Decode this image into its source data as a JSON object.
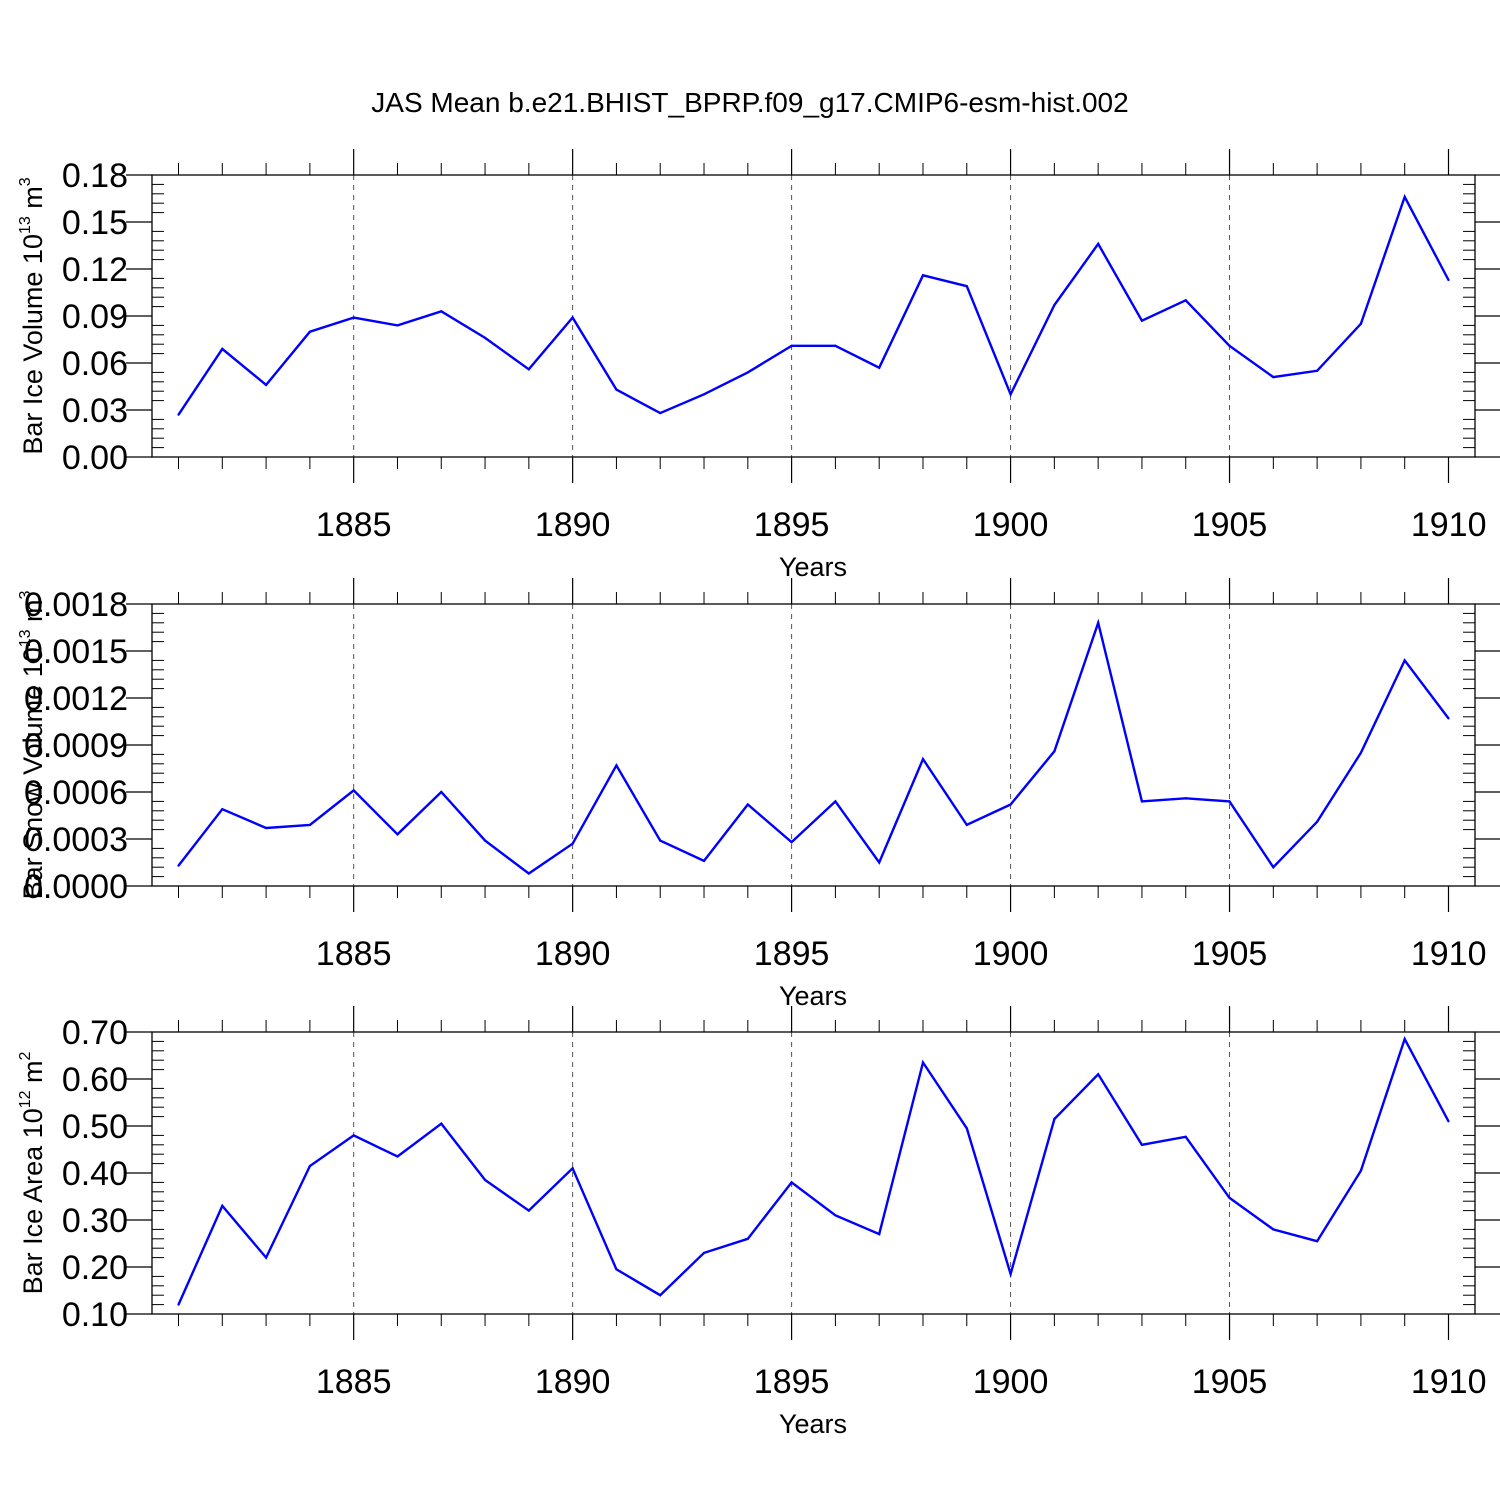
{
  "title": "JAS Mean b.e21.BHIST_BPRP.f09_g17.CMIP6-esm-hist.002",
  "colors": {
    "series": "#0000ff",
    "axes": "#000000",
    "grid": "#555555"
  },
  "chart_data": [
    {
      "type": "line",
      "ylabel": "Bar Ice Volume 10",
      "ylabel_exp": "13",
      "ylabel_unit": " m",
      "ylabel_unit_exp": "3",
      "xlabel": "Years",
      "xlim": [
        1881,
        1910
      ],
      "ylim": [
        0.0,
        0.18
      ],
      "yticks": [
        0.0,
        0.03,
        0.06,
        0.09,
        0.12,
        0.15,
        0.18
      ],
      "ytick_labels": [
        "0.00",
        "0.03",
        "0.06",
        "0.09",
        "0.12",
        "0.15",
        "0.18"
      ],
      "ytick_minor_step": 0.006,
      "xticks": [
        1885,
        1890,
        1895,
        1900,
        1905,
        1910
      ],
      "xtick_labels": [
        "1885",
        "1890",
        "1895",
        "1900",
        "1905",
        "1910"
      ],
      "x": [
        1881,
        1882,
        1883,
        1884,
        1885,
        1886,
        1887,
        1888,
        1889,
        1890,
        1891,
        1892,
        1893,
        1894,
        1895,
        1896,
        1897,
        1898,
        1899,
        1900,
        1901,
        1902,
        1903,
        1904,
        1905,
        1906,
        1907,
        1908,
        1909,
        1910
      ],
      "series": [
        {
          "name": "Bar Ice Volume",
          "values": [
            0.027,
            0.069,
            0.046,
            0.08,
            0.089,
            0.084,
            0.093,
            0.076,
            0.056,
            0.089,
            0.043,
            0.028,
            0.04,
            0.054,
            0.071,
            0.071,
            0.057,
            0.116,
            0.109,
            0.04,
            0.097,
            0.136,
            0.087,
            0.1,
            0.071,
            0.051,
            0.055,
            0.085,
            0.166,
            0.113
          ]
        }
      ]
    },
    {
      "type": "line",
      "ylabel": "Bar Snow Volume 10",
      "ylabel_exp": "13",
      "ylabel_unit": " m",
      "ylabel_unit_exp": "3",
      "xlabel": "Years",
      "xlim": [
        1881,
        1910
      ],
      "ylim": [
        0.0,
        0.0018
      ],
      "yticks": [
        0.0,
        0.0003,
        0.0006,
        0.0009,
        0.0012,
        0.0015,
        0.0018
      ],
      "ytick_labels": [
        "0.0000",
        "0.0003",
        "0.0006",
        "0.0009",
        "0.0012",
        "0.0015",
        "0.0018"
      ],
      "ytick_minor_step": 6e-05,
      "xticks": [
        1885,
        1890,
        1895,
        1900,
        1905,
        1910
      ],
      "xtick_labels": [
        "1885",
        "1890",
        "1895",
        "1900",
        "1905",
        "1910"
      ],
      "x": [
        1881,
        1882,
        1883,
        1884,
        1885,
        1886,
        1887,
        1888,
        1889,
        1890,
        1891,
        1892,
        1893,
        1894,
        1895,
        1896,
        1897,
        1898,
        1899,
        1900,
        1901,
        1902,
        1903,
        1904,
        1905,
        1906,
        1907,
        1908,
        1909,
        1910
      ],
      "series": [
        {
          "name": "Bar Snow Volume",
          "values": [
            0.00013,
            0.00049,
            0.00037,
            0.00039,
            0.00061,
            0.00033,
            0.0006,
            0.00029,
            8e-05,
            0.00027,
            0.00077,
            0.00029,
            0.00016,
            0.00052,
            0.00028,
            0.00054,
            0.00015,
            0.00081,
            0.00039,
            0.00052,
            0.00086,
            0.00168,
            0.00054,
            0.00056,
            0.00054,
            0.00012,
            0.00041,
            0.00085,
            0.00144,
            0.00107
          ]
        }
      ]
    },
    {
      "type": "line",
      "ylabel": "Bar Ice Area 10",
      "ylabel_exp": "12",
      "ylabel_unit": " m",
      "ylabel_unit_exp": "2",
      "xlabel": "Years",
      "xlim": [
        1881,
        1910
      ],
      "ylim": [
        0.1,
        0.7
      ],
      "yticks": [
        0.1,
        0.2,
        0.3,
        0.4,
        0.5,
        0.6,
        0.7
      ],
      "ytick_labels": [
        "0.10",
        "0.20",
        "0.30",
        "0.40",
        "0.50",
        "0.60",
        "0.70"
      ],
      "ytick_minor_step": 0.02,
      "xticks": [
        1885,
        1890,
        1895,
        1900,
        1905,
        1910
      ],
      "xtick_labels": [
        "1885",
        "1890",
        "1895",
        "1900",
        "1905",
        "1910"
      ],
      "x": [
        1881,
        1882,
        1883,
        1884,
        1885,
        1886,
        1887,
        1888,
        1889,
        1890,
        1891,
        1892,
        1893,
        1894,
        1895,
        1896,
        1897,
        1898,
        1899,
        1900,
        1901,
        1902,
        1903,
        1904,
        1905,
        1906,
        1907,
        1908,
        1909,
        1910
      ],
      "series": [
        {
          "name": "Bar Ice Area",
          "values": [
            0.12,
            0.33,
            0.22,
            0.415,
            0.48,
            0.435,
            0.505,
            0.385,
            0.32,
            0.41,
            0.195,
            0.14,
            0.23,
            0.26,
            0.38,
            0.31,
            0.27,
            0.635,
            0.495,
            0.185,
            0.515,
            0.61,
            0.46,
            0.477,
            0.347,
            0.28,
            0.255,
            0.405,
            0.685,
            0.51
          ]
        }
      ]
    }
  ]
}
